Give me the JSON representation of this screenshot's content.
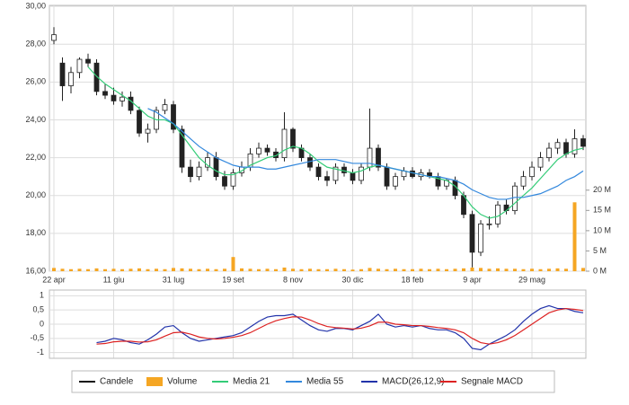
{
  "chart_data": [
    {
      "type": "candlestick",
      "name": "Candele",
      "categories": [
        "22 apr",
        null,
        null,
        null,
        null,
        null,
        null,
        "11 giu",
        null,
        null,
        null,
        null,
        null,
        null,
        "31 lug",
        null,
        null,
        null,
        null,
        null,
        null,
        "19 set",
        null,
        null,
        null,
        null,
        null,
        null,
        "8 nov",
        null,
        null,
        null,
        null,
        null,
        null,
        "30 dic",
        null,
        null,
        null,
        null,
        null,
        null,
        "18 feb",
        null,
        null,
        null,
        null,
        null,
        null,
        "9 apr",
        null,
        null,
        null,
        null,
        null,
        null,
        "29 mag",
        null,
        null,
        null,
        null,
        null,
        null
      ],
      "open": [
        28.2,
        27.0,
        25.8,
        26.5,
        27.2,
        27.0,
        25.5,
        25.3,
        25.0,
        25.2,
        24.5,
        23.3,
        23.5,
        24.5,
        24.8,
        23.5,
        21.5,
        21.0,
        21.5,
        22.0,
        21.0,
        20.5,
        21.2,
        21.5,
        22.2,
        22.5,
        22.3,
        22.0,
        23.5,
        22.5,
        22.0,
        21.5,
        21.0,
        20.8,
        21.5,
        21.2,
        20.8,
        21.5,
        22.5,
        21.5,
        20.5,
        21.0,
        21.3,
        21.0,
        21.2,
        21.0,
        20.5,
        20.8,
        20.0,
        19.0,
        17.0,
        18.5,
        18.5,
        19.5,
        19.2,
        20.5,
        21.0,
        21.5,
        22.0,
        22.5,
        22.8,
        22.2,
        23.0
      ],
      "high": [
        28.9,
        27.3,
        26.8,
        27.3,
        27.5,
        27.2,
        25.9,
        25.7,
        25.5,
        25.5,
        24.7,
        23.8,
        24.7,
        25.1,
        25.0,
        23.7,
        21.9,
        21.8,
        22.3,
        22.3,
        21.3,
        21.4,
        21.8,
        22.5,
        22.8,
        22.7,
        22.5,
        24.4,
        23.6,
        22.7,
        22.2,
        21.7,
        21.3,
        21.7,
        21.7,
        21.4,
        21.7,
        24.6,
        22.7,
        21.7,
        21.2,
        21.5,
        21.5,
        21.4,
        21.4,
        21.2,
        20.9,
        21.0,
        20.2,
        19.2,
        18.7,
        18.9,
        19.7,
        19.8,
        20.7,
        21.3,
        21.8,
        22.3,
        22.8,
        23.0,
        23.0,
        23.5,
        23.2
      ],
      "low": [
        28.0,
        25.0,
        25.4,
        26.2,
        26.8,
        25.3,
        25.1,
        24.8,
        24.7,
        24.3,
        23.1,
        22.8,
        23.3,
        24.3,
        23.3,
        21.2,
        20.7,
        20.8,
        21.3,
        20.8,
        20.3,
        20.3,
        21.0,
        21.3,
        22.0,
        22.1,
        21.8,
        21.8,
        22.3,
        21.8,
        21.3,
        20.8,
        20.5,
        20.6,
        21.0,
        20.6,
        20.6,
        21.3,
        21.3,
        20.3,
        20.3,
        20.8,
        20.9,
        20.8,
        20.9,
        20.3,
        20.3,
        19.8,
        18.8,
        16.2,
        16.8,
        18.2,
        18.3,
        19.0,
        19.0,
        20.3,
        20.8,
        21.3,
        21.8,
        22.2,
        22.0,
        22.0,
        22.4
      ],
      "close": [
        28.5,
        25.8,
        26.5,
        27.2,
        27.0,
        25.5,
        25.3,
        25.0,
        25.2,
        24.5,
        23.3,
        23.5,
        24.5,
        24.8,
        23.5,
        21.5,
        21.0,
        21.5,
        22.0,
        21.0,
        20.5,
        21.2,
        21.5,
        22.2,
        22.5,
        22.3,
        22.0,
        23.5,
        22.5,
        22.0,
        21.5,
        21.0,
        20.8,
        21.5,
        21.2,
        20.8,
        21.5,
        22.5,
        21.5,
        20.5,
        21.0,
        21.3,
        21.0,
        21.2,
        21.0,
        20.5,
        20.8,
        20.0,
        19.0,
        17.0,
        18.5,
        18.5,
        19.5,
        19.2,
        20.5,
        21.0,
        21.5,
        22.0,
        22.5,
        22.8,
        22.2,
        23.0,
        22.6
      ],
      "series": [
        {
          "name": "Volume",
          "color": "#f5a623",
          "axis": "y2",
          "values": [
            0.8,
            0.6,
            0.5,
            0.6,
            0.5,
            0.7,
            0.5,
            0.6,
            0.5,
            0.6,
            0.7,
            0.5,
            0.6,
            0.5,
            0.8,
            0.7,
            0.6,
            0.5,
            0.6,
            0.5,
            0.6,
            3.5,
            0.7,
            0.6,
            0.5,
            0.6,
            0.5,
            0.9,
            0.6,
            0.5,
            0.6,
            0.5,
            0.5,
            0.6,
            0.5,
            0.4,
            0.5,
            0.8,
            0.6,
            0.5,
            0.6,
            0.5,
            0.5,
            0.6,
            0.5,
            0.6,
            0.5,
            0.6,
            0.7,
            0.9,
            0.8,
            0.6,
            0.7,
            0.6,
            0.6,
            0.5,
            0.6,
            0.5,
            0.6,
            0.7,
            0.6,
            17.0,
            0.8
          ]
        },
        {
          "name": "Media 21",
          "color": "#33cc77",
          "values": [
            null,
            null,
            null,
            null,
            26.8,
            26.3,
            25.9,
            25.6,
            25.3,
            25.0,
            24.6,
            24.2,
            24.0,
            24.0,
            23.8,
            23.2,
            22.6,
            22.0,
            21.6,
            21.3,
            21.1,
            21.1,
            21.3,
            21.6,
            21.8,
            22.0,
            22.1,
            22.4,
            22.6,
            22.5,
            22.2,
            21.8,
            21.5,
            21.4,
            21.3,
            21.2,
            21.3,
            21.5,
            21.6,
            21.5,
            21.4,
            21.3,
            21.2,
            21.1,
            21.0,
            20.9,
            20.8,
            20.5,
            20.0,
            19.4,
            19.0,
            18.8,
            18.9,
            19.2,
            19.6,
            20.0,
            20.4,
            20.9,
            21.4,
            21.9,
            22.2,
            22.4,
            22.5
          ]
        },
        {
          "name": "Media 55",
          "color": "#3388dd",
          "values": [
            null,
            null,
            null,
            null,
            null,
            null,
            null,
            null,
            null,
            null,
            null,
            24.6,
            24.4,
            24.1,
            23.8,
            23.4,
            23.0,
            22.6,
            22.3,
            22.0,
            21.8,
            21.6,
            21.5,
            21.5,
            21.5,
            21.4,
            21.4,
            21.5,
            21.6,
            21.7,
            21.8,
            21.9,
            21.9,
            21.9,
            21.8,
            21.7,
            21.7,
            21.7,
            21.6,
            21.5,
            21.4,
            21.3,
            21.2,
            21.1,
            21.0,
            21.0,
            20.9,
            20.8,
            20.6,
            20.3,
            20.1,
            19.9,
            19.8,
            19.8,
            19.9,
            19.9,
            20.0,
            20.1,
            20.3,
            20.5,
            20.8,
            21.0,
            21.3
          ]
        }
      ],
      "ylim": [
        16,
        30.05
      ],
      "yticks": [
        {
          "value": 16,
          "label": "16,00"
        },
        {
          "value": 18,
          "label": "18,00"
        },
        {
          "value": 20,
          "label": "20,00"
        },
        {
          "value": 22,
          "label": "22,00"
        },
        {
          "value": 24,
          "label": "24,00"
        },
        {
          "value": 26,
          "label": "26,00"
        },
        {
          "value": 28,
          "label": "28,00"
        },
        {
          "value": 30,
          "label": "30,00"
        }
      ],
      "y2lim": [
        0,
        65.6
      ],
      "y2ticks": [
        {
          "value": 0,
          "label": "0 M"
        },
        {
          "value": 5,
          "label": "5 M"
        },
        {
          "value": 10,
          "label": "10 M"
        },
        {
          "value": 15,
          "label": "15 M"
        },
        {
          "value": 20,
          "label": "20 M"
        }
      ],
      "grid": true
    },
    {
      "type": "line",
      "series": [
        {
          "name": "MACD(26,12,9)",
          "color": "#2233aa",
          "values": [
            null,
            null,
            null,
            null,
            null,
            -0.65,
            -0.6,
            -0.5,
            -0.55,
            -0.65,
            -0.7,
            -0.55,
            -0.35,
            -0.1,
            -0.05,
            -0.3,
            -0.5,
            -0.6,
            -0.55,
            -0.5,
            -0.45,
            -0.4,
            -0.3,
            -0.1,
            0.1,
            0.25,
            0.3,
            0.3,
            0.35,
            0.15,
            -0.05,
            -0.2,
            -0.25,
            -0.15,
            -0.15,
            -0.2,
            -0.05,
            0.1,
            0.35,
            0.0,
            -0.1,
            -0.05,
            -0.1,
            -0.05,
            -0.15,
            -0.2,
            -0.2,
            -0.3,
            -0.5,
            -0.85,
            -0.9,
            -0.7,
            -0.55,
            -0.4,
            -0.2,
            0.1,
            0.35,
            0.55,
            0.65,
            0.55,
            0.55,
            0.45,
            0.4
          ]
        },
        {
          "name": "Segnale MACD",
          "color": "#dd2222",
          "values": [
            null,
            null,
            null,
            null,
            null,
            -0.7,
            -0.68,
            -0.62,
            -0.6,
            -0.6,
            -0.63,
            -0.62,
            -0.55,
            -0.42,
            -0.3,
            -0.28,
            -0.35,
            -0.45,
            -0.5,
            -0.52,
            -0.5,
            -0.46,
            -0.4,
            -0.3,
            -0.15,
            0.0,
            0.12,
            0.2,
            0.26,
            0.25,
            0.15,
            0.02,
            -0.08,
            -0.12,
            -0.14,
            -0.17,
            -0.14,
            -0.06,
            0.07,
            0.07,
            0.0,
            -0.02,
            -0.05,
            -0.05,
            -0.08,
            -0.12,
            -0.15,
            -0.2,
            -0.3,
            -0.5,
            -0.65,
            -0.7,
            -0.65,
            -0.55,
            -0.4,
            -0.2,
            0.0,
            0.2,
            0.4,
            0.5,
            0.55,
            0.52,
            0.48
          ]
        }
      ],
      "ylim": [
        -1.2,
        1.2
      ],
      "yticks": [
        1,
        {
          "value": 0.5,
          "label": "0,5"
        },
        0,
        {
          "value": -0.5,
          "label": "-0,5"
        },
        -1
      ],
      "grid": true
    }
  ]
}
